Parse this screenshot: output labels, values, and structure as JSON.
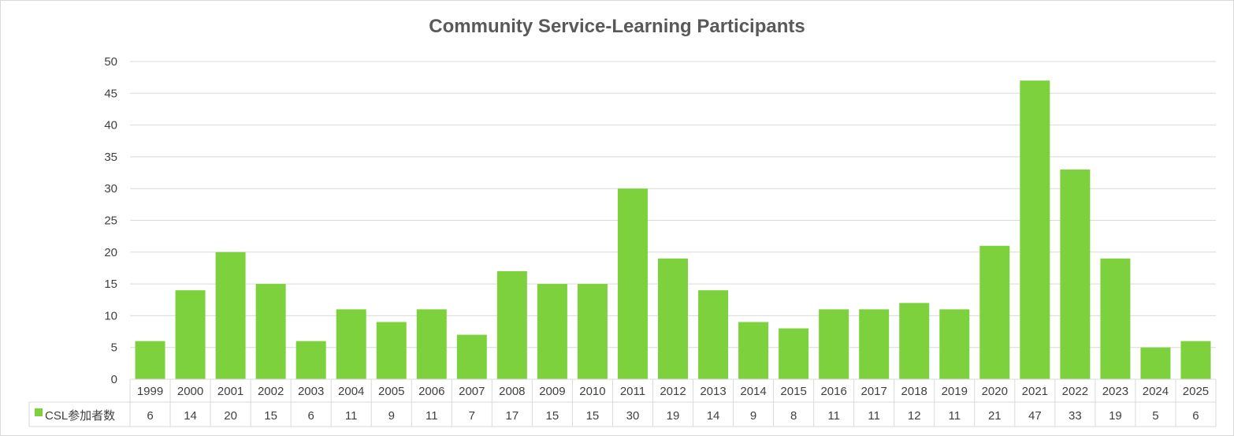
{
  "chart_data": {
    "type": "bar",
    "title": "Community Service-Learning Participants",
    "categories": [
      "1999",
      "2000",
      "2001",
      "2002",
      "2003",
      "2004",
      "2005",
      "2006",
      "2007",
      "2008",
      "2009",
      "2010",
      "2011",
      "2012",
      "2013",
      "2014",
      "2015",
      "2016",
      "2017",
      "2018",
      "2019",
      "2020",
      "2021",
      "2022",
      "2023",
      "2024",
      "2025"
    ],
    "series": [
      {
        "name": "CSL参加者数",
        "color": "#7dd13d",
        "values": [
          6,
          14,
          20,
          15,
          6,
          11,
          9,
          11,
          7,
          17,
          15,
          15,
          30,
          19,
          14,
          9,
          8,
          11,
          11,
          12,
          11,
          21,
          47,
          33,
          19,
          5,
          6
        ]
      }
    ],
    "ylim": [
      0,
      50
    ],
    "yticks": [
      0,
      5,
      10,
      15,
      20,
      25,
      30,
      35,
      40,
      45,
      50
    ],
    "grid": true,
    "data_table": true,
    "xlabel": "",
    "ylabel": ""
  }
}
